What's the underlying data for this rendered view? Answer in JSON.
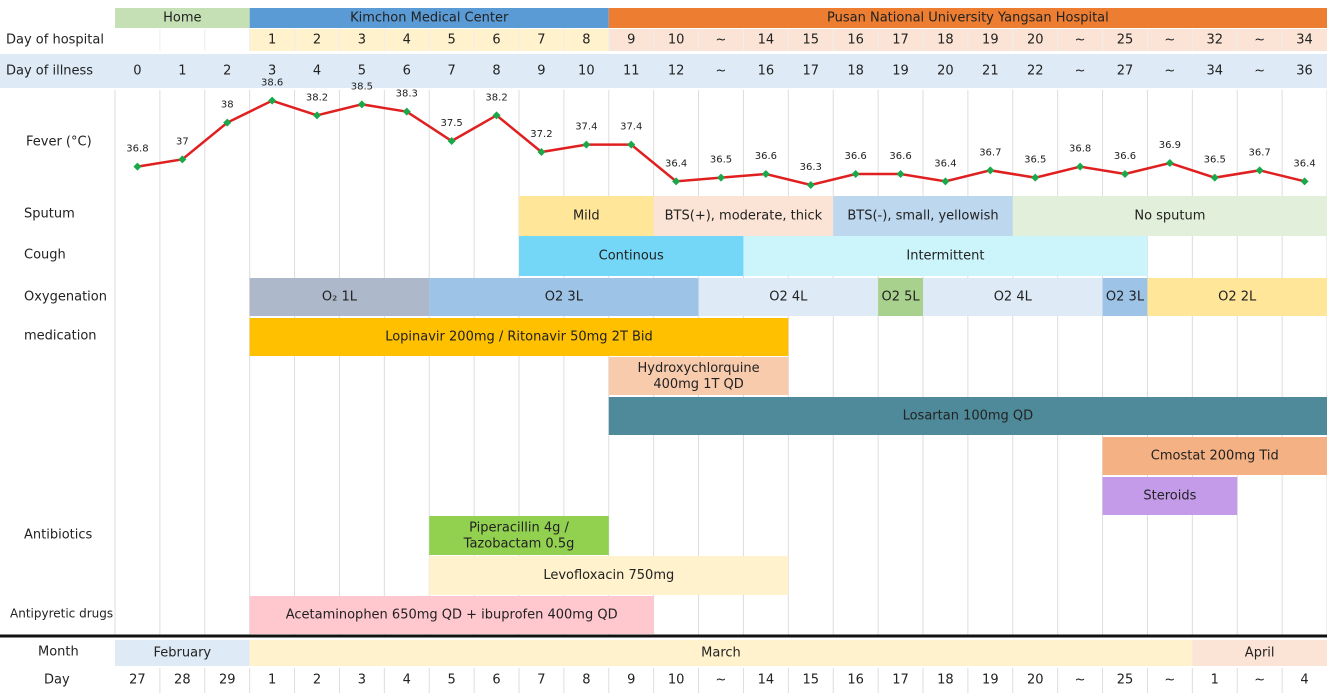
{
  "chart_data": {
    "type": "line",
    "row_label": "Fever (°C)",
    "categories": [
      "0",
      "1",
      "2",
      "3",
      "4",
      "5",
      "6",
      "7",
      "8",
      "9",
      "10",
      "11",
      "12",
      "~",
      "16",
      "17",
      "18",
      "19",
      "20",
      "21",
      "22",
      "~",
      "27",
      "~",
      "34",
      "~",
      "36"
    ],
    "series": [
      {
        "name": "Fever",
        "color": "#e02020",
        "marker_color": "#1aa84a",
        "values": [
          36.8,
          37,
          38,
          38.6,
          38.2,
          38.5,
          38.3,
          37.5,
          38.2,
          37.2,
          37.4,
          37.4,
          36.4,
          36.5,
          36.6,
          36.3,
          36.6,
          36.6,
          36.4,
          36.7,
          36.5,
          36.8,
          36.6,
          36.9,
          36.5,
          36.7,
          36.4
        ]
      }
    ],
    "ylim": [
      36,
      39
    ]
  },
  "hospitals": [
    {
      "name": "Home",
      "color": "#c5e0b4"
    },
    {
      "name": "Kimchon Medical Center",
      "color": "#5b9bd5"
    },
    {
      "name": "Pusan National University Yangsan Hospital",
      "color": "#ed7d31"
    }
  ],
  "day_of_hospital": {
    "label": "Day of hospital",
    "values": [
      null,
      null,
      null,
      "1",
      "2",
      "3",
      "4",
      "5",
      "6",
      "7",
      "8",
      "9",
      "10",
      "~",
      "14",
      "15",
      "16",
      "17",
      "18",
      "19",
      "20",
      "~",
      "25",
      "~",
      "32",
      "~",
      "34"
    ]
  },
  "day_of_illness_label": "Day of illness",
  "rows": [
    {
      "label": "Sputum",
      "bars": [
        {
          "text": "Mild",
          "color": "#ffe699"
        },
        {
          "text": "BTS(+), moderate, thick",
          "color": "#fbe4d5"
        },
        {
          "text": "BTS(-), small, yellowish",
          "color": "#bdd7ee"
        },
        {
          "text": "No sputum",
          "color": "#e2efda"
        }
      ]
    },
    {
      "label": "Cough",
      "bars": [
        {
          "text": "Continous",
          "color": "#75d7f7"
        },
        {
          "text": "Intermittent",
          "color": "#ccf4fb"
        }
      ]
    },
    {
      "label": "Oxygenation",
      "bars": [
        {
          "text": "O₂ 1L",
          "color": "#adb9ca"
        },
        {
          "text": "O2 3L",
          "color": "#9dc3e6"
        },
        {
          "text": "O2 4L",
          "color": "#deebf7"
        },
        {
          "text": "O2 5L",
          "color": "#a9d18e"
        },
        {
          "text": "O2 4L",
          "color": "#deebf7"
        },
        {
          "text": "O2 3L",
          "color": "#9dc3e6"
        },
        {
          "text": "O2 2L",
          "color": "#ffe699"
        }
      ]
    },
    {
      "label": "medication",
      "bars": [
        {
          "text": "Lopinavir 200mg / Ritonavir 50mg  2T Bid",
          "color": "#ffc000"
        },
        {
          "text": "Hydroxychlorquine\n400mg 1T QD",
          "color": "#f8cbad"
        },
        {
          "text": "Losartan 100mg QD",
          "color": "#4f8a9a"
        },
        {
          "text": "Cmostat 200mg Tid",
          "color": "#f4b183"
        },
        {
          "text": "Steroids",
          "color": "#c39be8"
        }
      ]
    },
    {
      "label": "Antibiotics",
      "bars": [
        {
          "text": "Piperacillin 4g /\nTazobactam 0.5g",
          "color": "#92d050"
        },
        {
          "text": "Levofloxacin 750mg",
          "color": "#fff2cc"
        }
      ]
    },
    {
      "label": "Antipyretic drugs",
      "bars": [
        {
          "text": "Acetaminophen 650mg QD + ibuprofen 400mg QD",
          "color": "#ffc7ce"
        }
      ]
    }
  ],
  "months": {
    "label": "Month",
    "values": [
      {
        "name": "February",
        "color": "#deebf7"
      },
      {
        "name": "March",
        "color": "#fff2cc"
      },
      {
        "name": "April",
        "color": "#fbe4d5"
      }
    ]
  },
  "days": {
    "label": "Day",
    "values": [
      "27",
      "28",
      "29",
      "1",
      "2",
      "3",
      "4",
      "5",
      "6",
      "7",
      "8",
      "9",
      "10",
      "~",
      "14",
      "15",
      "16",
      "17",
      "18",
      "19",
      "20",
      "~",
      "25",
      "~",
      "1",
      "~",
      "4"
    ]
  }
}
